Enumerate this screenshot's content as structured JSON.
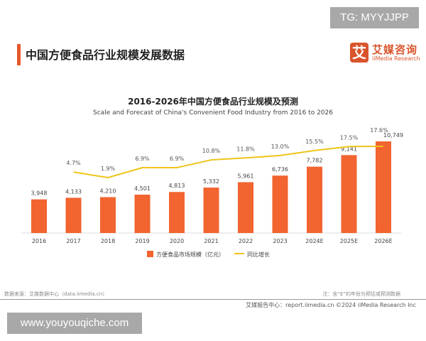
{
  "watermark_top": "TG: MYYJJPP",
  "watermark_bottom": "www.youyouqiche.com",
  "header": {
    "title": "中国方便食品行业规模发展数据"
  },
  "logo": {
    "mark": "艾",
    "cn": "艾媒咨询",
    "en": "iiMedia Research"
  },
  "footer": {
    "source": "数据来源：艾媒数据中心（data.iimedia.cn）",
    "note": "注：含“E”的年份为预估或预测数据",
    "credit": "艾媒报告中心：report.iimedia.cn    ©2024  iiMedia Research Inc"
  },
  "colors": {
    "bar": "#f26430",
    "line": "#f0c419",
    "accent": "#e8582a"
  },
  "chart_data": {
    "type": "bar+line",
    "title": "2016-2026年中国方便食品行业规模及预测",
    "subtitle": "Scale and Forecast of China's Convenient Food Industry from 2016 to 2026",
    "categories": [
      "2016",
      "2017",
      "2018",
      "2019",
      "2020",
      "2021",
      "2022",
      "2023",
      "2024E",
      "2025E",
      "2026E"
    ],
    "series": [
      {
        "name": "方便食品市场规模（亿元）",
        "type": "bar",
        "values": [
          3948,
          4133,
          4210,
          4501,
          4813,
          5332,
          5961,
          6736,
          7782,
          9141,
          10749
        ],
        "labels": [
          "3,948",
          "4,133",
          "4,210",
          "4,501",
          "4,813",
          "5,332",
          "5,961",
          "6,736",
          "7,782",
          "9,141",
          "10,749"
        ]
      },
      {
        "name": "同比增长",
        "type": "line",
        "axis": "secondary",
        "values": [
          null,
          4.7,
          1.9,
          6.9,
          6.9,
          10.8,
          11.8,
          13.0,
          15.5,
          17.5,
          17.6
        ],
        "labels": [
          "",
          "4.7%",
          "1.9%",
          "6.9%",
          "6.9%",
          "10.8%",
          "11.8%",
          "13.0%",
          "15.5%",
          "17.5%",
          "17.6%"
        ]
      }
    ],
    "legend": "bottom",
    "grid": false
  }
}
